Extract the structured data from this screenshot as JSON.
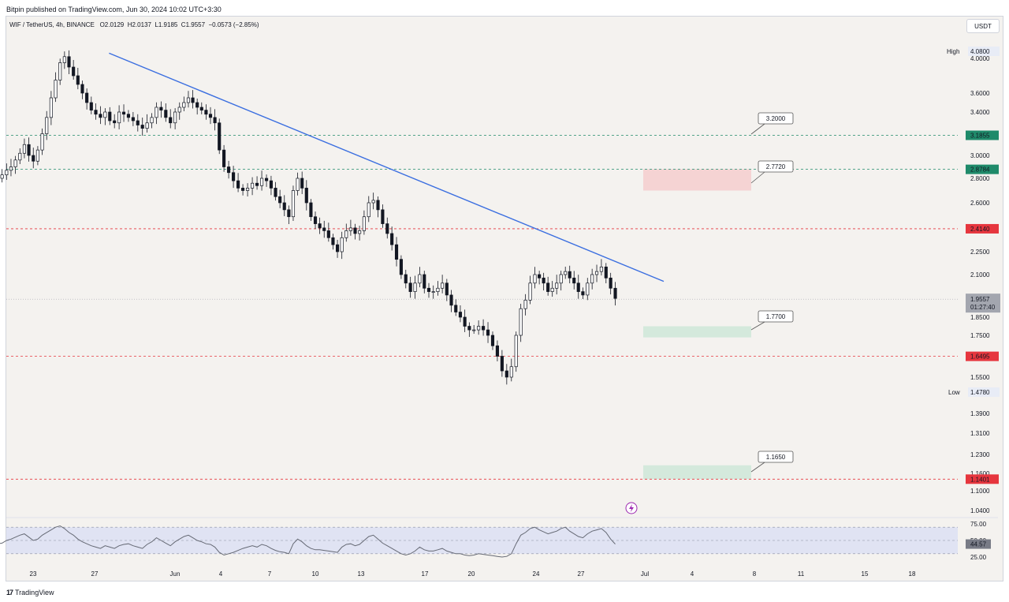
{
  "header": {
    "published_text": "Bitpin published on TradingView.com, Jun 30, 2024 10:02 UTC+3:30"
  },
  "symbol_bar": {
    "symbol": "WIF / TetherUS, 4h, BINANCE",
    "open": "O2.0129",
    "high": "H2.0137",
    "low": "L1.9185",
    "close": "C1.9557",
    "change": "−0.0573 (−2.85%)"
  },
  "currency_button": "USDT",
  "footer": {
    "brand": "TradingView"
  },
  "colors": {
    "background": "#f4f2ef",
    "bull": "#ffffff",
    "bear": "#131722",
    "trendline": "#3a6ee0",
    "green_level": "#1f8a6a",
    "red_level": "#e6363e",
    "grey_price": "#a3a6af",
    "high_low_label_bg": "#e8ecf6",
    "supply_zone": "#f5d3d3",
    "demand_zone": "#d4e9dc",
    "rsi_band": "#e0e3f3",
    "rsi_line": "#666a75",
    "event_icon": "#9c27b0"
  },
  "icons": {
    "event_marker": "lightning-icon",
    "brand_mark": "tradingview-logo-icon"
  },
  "chart_data": {
    "type": "candlestick",
    "timeframe": "4h",
    "x_ticks": [
      "23",
      "27",
      "Jun",
      "4",
      "7",
      "10",
      "13",
      "17",
      "20",
      "24",
      "27",
      "Jul",
      "4",
      "8",
      "11",
      "15",
      "18"
    ],
    "y_ticks": [
      "4.0000",
      "3.6000",
      "3.4000",
      "3.0000",
      "2.8000",
      "2.6000",
      "2.2500",
      "2.1000",
      "1.8500",
      "1.7500",
      "1.5500",
      "1.3900",
      "1.3100",
      "1.2300",
      "1.1600",
      "1.1000",
      "1.0400"
    ],
    "high_label": {
      "label": "High",
      "value": "4.0800"
    },
    "low_label": {
      "label": "Low",
      "value": "1.4780"
    },
    "last_price": {
      "value": "1.9557",
      "countdown": "01:27:40"
    },
    "horizontal_levels": [
      {
        "value": 3.1855,
        "label": "3.1855",
        "color": "green"
      },
      {
        "value": 2.8784,
        "label": "2.8784",
        "color": "green"
      },
      {
        "value": 2.414,
        "label": "2.4140",
        "color": "red"
      },
      {
        "value": 1.6495,
        "label": "1.6495",
        "color": "red"
      },
      {
        "value": 1.1401,
        "label": "1.1401",
        "color": "red"
      }
    ],
    "target_callouts": [
      "3.2000",
      "2.7720",
      "1.7700",
      "1.1650"
    ],
    "zones": [
      {
        "kind": "supply",
        "from": 2.7,
        "to": 2.88
      },
      {
        "kind": "demand",
        "from": 1.74,
        "to": 1.8
      },
      {
        "kind": "demand",
        "from": 1.14,
        "to": 1.19
      }
    ],
    "trendline": {
      "from": {
        "date": "May 28",
        "price": 4.06
      },
      "to": {
        "date": "Jul 3",
        "price": 2.06
      }
    },
    "candles_close_path": [
      2.82,
      2.78,
      2.85,
      2.95,
      3.05,
      2.95,
      2.9,
      2.88,
      2.84,
      2.86,
      2.82,
      2.8,
      2.83,
      2.87,
      2.9,
      2.96,
      3.02,
      3.1,
      3.0,
      2.95,
      3.05,
      3.2,
      3.35,
      3.55,
      3.75,
      3.95,
      4.02,
      3.9,
      3.8,
      3.7,
      3.6,
      3.5,
      3.42,
      3.38,
      3.35,
      3.4,
      3.32,
      3.3,
      3.4,
      3.38,
      3.35,
      3.32,
      3.28,
      3.25,
      3.3,
      3.35,
      3.45,
      3.42,
      3.35,
      3.3,
      3.4,
      3.45,
      3.5,
      3.55,
      3.5,
      3.45,
      3.42,
      3.38,
      3.35,
      3.3,
      3.05,
      2.9,
      2.85,
      2.78,
      2.72,
      2.7,
      2.72,
      2.76,
      2.74,
      2.8,
      2.78,
      2.72,
      2.65,
      2.6,
      2.55,
      2.5,
      2.7,
      2.8,
      2.72,
      2.6,
      2.5,
      2.45,
      2.42,
      2.4,
      2.35,
      2.3,
      2.25,
      2.35,
      2.4,
      2.42,
      2.38,
      2.4,
      2.5,
      2.6,
      2.62,
      2.55,
      2.45,
      2.38,
      2.3,
      2.2,
      2.1,
      2.05,
      2.0,
      2.05,
      2.1,
      2.02,
      2.0,
      2.0,
      2.02,
      2.05,
      1.98,
      1.92,
      1.88,
      1.85,
      1.8,
      1.78,
      1.78,
      1.8,
      1.78,
      1.75,
      1.7,
      1.65,
      1.58,
      1.55,
      1.6,
      1.75,
      1.9,
      1.95,
      2.05,
      2.1,
      2.08,
      2.05,
      2.0,
      2.02,
      2.05,
      2.1,
      2.12,
      2.08,
      2.05,
      2.0,
      1.98,
      2.05,
      2.1,
      2.12,
      2.15,
      2.08,
      2.02,
      1.96
    ],
    "rsi": {
      "y_ticks": [
        "75.00",
        "50.00",
        "25.00"
      ],
      "current": "44.57",
      "band": [
        30,
        70
      ],
      "values": [
        52,
        48,
        50,
        55,
        60,
        58,
        56,
        52,
        48,
        50,
        47,
        45,
        46,
        50,
        52,
        55,
        58,
        60,
        55,
        50,
        52,
        58,
        62,
        66,
        70,
        72,
        68,
        62,
        58,
        52,
        48,
        45,
        42,
        40,
        38,
        42,
        40,
        38,
        42,
        44,
        45,
        42,
        40,
        38,
        44,
        48,
        54,
        50,
        46,
        42,
        48,
        52,
        56,
        58,
        54,
        50,
        48,
        45,
        44,
        40,
        32,
        28,
        30,
        32,
        35,
        38,
        40,
        42,
        40,
        44,
        42,
        38,
        35,
        33,
        32,
        30,
        45,
        52,
        48,
        42,
        38,
        36,
        36,
        35,
        34,
        33,
        32,
        40,
        44,
        45,
        42,
        44,
        50,
        56,
        58,
        52,
        46,
        42,
        38,
        34,
        30,
        28,
        30,
        34,
        40,
        36,
        34,
        34,
        36,
        38,
        34,
        32,
        30,
        30,
        28,
        27,
        28,
        30,
        29,
        28,
        27,
        26,
        25,
        26,
        30,
        45,
        58,
        62,
        68,
        70,
        66,
        63,
        60,
        62,
        64,
        68,
        70,
        64,
        60,
        56,
        54,
        60,
        64,
        66,
        68,
        62,
        52,
        44.57
      ]
    }
  }
}
